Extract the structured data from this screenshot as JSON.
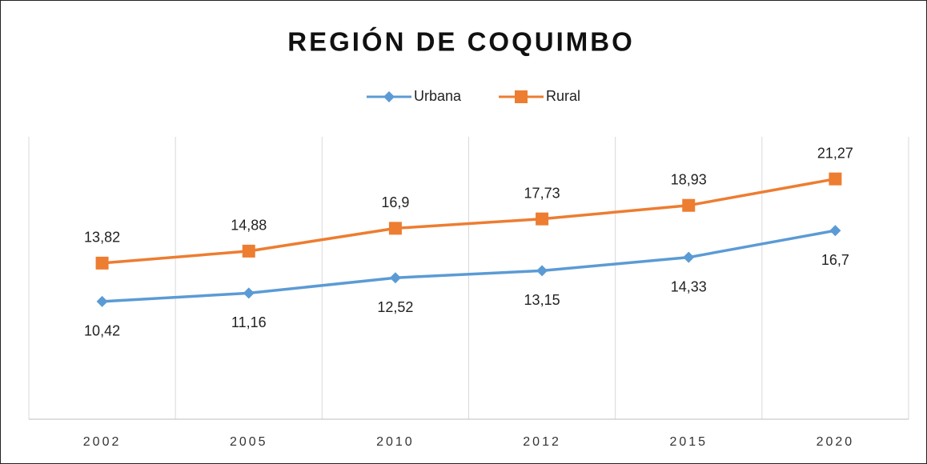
{
  "chart_data": {
    "type": "line",
    "title": "REGIÓN DE COQUIMBO",
    "categories": [
      "2002",
      "2005",
      "2010",
      "2012",
      "2015",
      "2020"
    ],
    "series": [
      {
        "name": "Urbana",
        "color": "#5b9bd5",
        "marker": "diamond",
        "values": [
          10.42,
          11.16,
          12.52,
          13.15,
          14.33,
          16.7
        ],
        "value_labels": [
          "10,42",
          "11,16",
          "12,52",
          "13,15",
          "14,33",
          "16,7"
        ]
      },
      {
        "name": "Rural",
        "color": "#ed7d31",
        "marker": "square",
        "values": [
          13.82,
          14.88,
          16.9,
          17.73,
          18.93,
          21.27
        ],
        "value_labels": [
          "13,82",
          "14,88",
          "16,9",
          "17,73",
          "18,93",
          "21,27"
        ]
      }
    ],
    "ylim": [
      0,
      25
    ],
    "grid": "x",
    "legend": "top"
  }
}
